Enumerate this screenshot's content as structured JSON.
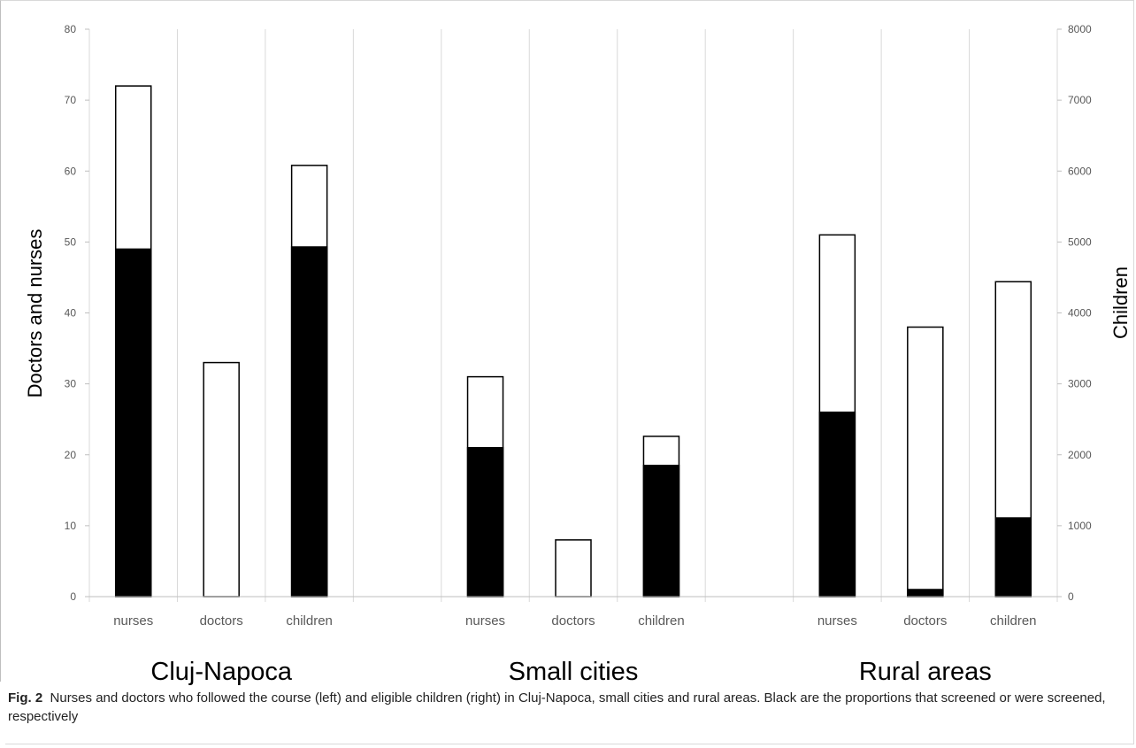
{
  "chart_data": {
    "type": "bar",
    "stacked": true,
    "y_left": {
      "label": "Doctors and nurses",
      "range": [
        0,
        80
      ],
      "ticks": [
        0,
        10,
        20,
        30,
        40,
        50,
        60,
        70,
        80
      ]
    },
    "y_right": {
      "label": "Children",
      "range": [
        0,
        8000
      ],
      "ticks": [
        0,
        1000,
        2000,
        3000,
        4000,
        5000,
        6000,
        7000,
        8000
      ]
    },
    "grid": "vertical",
    "colors": {
      "screened": "#000000",
      "total": "#ffffff",
      "outline": "#000000",
      "grid": "#d9d9d9"
    },
    "groups": [
      {
        "label": "Cluj-Napoca",
        "bars": [
          {
            "category": "nurses",
            "axis": "left",
            "total": 72,
            "screened": 49
          },
          {
            "category": "doctors",
            "axis": "left",
            "total": 33,
            "screened": 0
          },
          {
            "category": "children",
            "axis": "right",
            "total": 6080,
            "screened": 4930
          }
        ]
      },
      {
        "label": "Small cities",
        "bars": [
          {
            "category": "nurses",
            "axis": "left",
            "total": 31,
            "screened": 21
          },
          {
            "category": "doctors",
            "axis": "left",
            "total": 8,
            "screened": 0
          },
          {
            "category": "children",
            "axis": "right",
            "total": 2260,
            "screened": 1850
          }
        ]
      },
      {
        "label": "Rural areas",
        "bars": [
          {
            "category": "nurses",
            "axis": "left",
            "total": 51,
            "screened": 26
          },
          {
            "category": "doctors",
            "axis": "left",
            "total": 38,
            "screened": 1
          },
          {
            "category": "children",
            "axis": "right",
            "total": 4440,
            "screened": 1110
          }
        ]
      }
    ]
  },
  "caption": {
    "label": "Fig. 2",
    "text": "Nurses and doctors who followed the course (left) and eligible children (right) in Cluj-Napoca, small cities and rural areas. Black are the proportions that screened or were screened, respectively"
  }
}
